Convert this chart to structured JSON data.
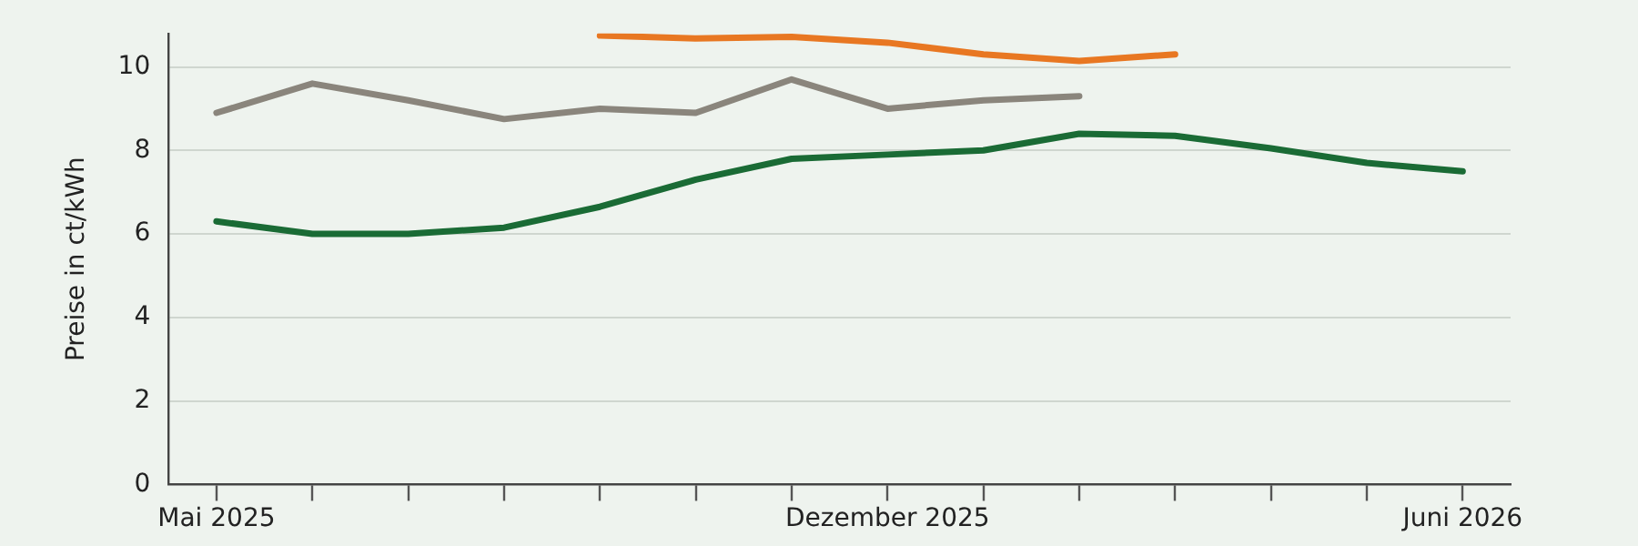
{
  "chart_data": {
    "type": "line",
    "ylabel": "Preise in ct/kWh",
    "categories": [
      "Mai 2025",
      null,
      null,
      null,
      null,
      null,
      null,
      "Dezember 2025",
      null,
      null,
      null,
      null,
      null,
      "Juni 2026"
    ],
    "series": [
      {
        "color": "#e87722",
        "values": [
          null,
          null,
          null,
          null,
          10.75,
          10.68,
          10.72,
          10.58,
          10.3,
          10.14,
          10.3,
          null,
          null,
          null
        ]
      },
      {
        "color": "#8a857c",
        "values": [
          8.9,
          9.6,
          9.2,
          8.75,
          9.0,
          8.9,
          9.7,
          9.0,
          9.2,
          9.3,
          null,
          null,
          null,
          null
        ]
      },
      {
        "color": "#1a6b35",
        "values": [
          6.3,
          6.0,
          6.0,
          6.15,
          6.65,
          7.3,
          7.8,
          7.9,
          8.0,
          8.4,
          8.35,
          8.05,
          7.7,
          7.5
        ]
      }
    ],
    "ylim": [
      0,
      10.8
    ],
    "yticks": [
      0,
      2,
      4,
      6,
      8,
      10
    ],
    "grid": "y",
    "legend": false,
    "marker": "none",
    "line_style": "solid"
  }
}
